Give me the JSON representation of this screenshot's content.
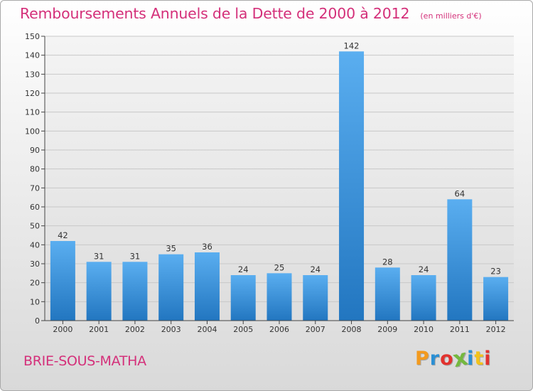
{
  "header": {
    "title": "Remboursements Annuels de la Dette de 2000 à 2012",
    "subtitle": "(en milliers d'€)"
  },
  "commune": "BRIE-SOUS-MATHA",
  "logo": {
    "text": "Proxiti",
    "letter_colors": [
      "#f39a1e",
      "#2a8fd4",
      "#e2322e",
      "#74b83f",
      "#2a8fd4",
      "#f2c21b",
      "#e2322e"
    ]
  },
  "chart_data": {
    "type": "bar",
    "title": "Remboursements Annuels de la Dette de 2000 à 2012",
    "subtitle": "(en milliers d'€)",
    "categories": [
      "2000",
      "2001",
      "2002",
      "2003",
      "2004",
      "2005",
      "2006",
      "2007",
      "2008",
      "2009",
      "2010",
      "2011",
      "2012"
    ],
    "values": [
      42,
      31,
      31,
      35,
      36,
      24,
      25,
      24,
      142,
      28,
      24,
      64,
      23
    ],
    "ylim": [
      0,
      150
    ],
    "yticks": [
      0,
      10,
      20,
      30,
      40,
      50,
      60,
      70,
      80,
      90,
      100,
      110,
      120,
      130,
      140,
      150
    ],
    "grid": true,
    "data_labels": true,
    "bar_color_top": "#5aaef0",
    "bar_color_bottom": "#2276c0"
  }
}
